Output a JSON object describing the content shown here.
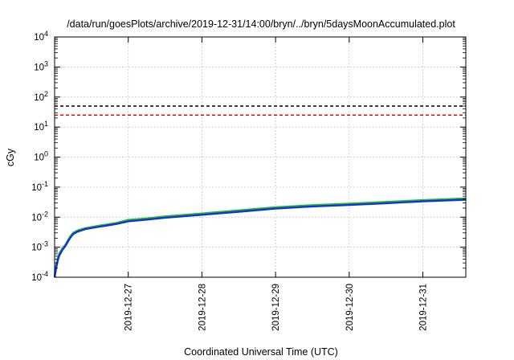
{
  "chart_data": {
    "type": "line",
    "title": "/data/run/goesPlots/archive/2019-12-31/14:00/bryn/../bryn/5daysMoonAccumulated.plot",
    "xlabel": "Coordinated Universal Time (UTC)",
    "ylabel": "cGy",
    "y_scale": "log",
    "ylim": [
      0.0001,
      10000
    ],
    "xlim": [
      "2019-12-26T00:00",
      "2019-12-31T14:00"
    ],
    "grid": true,
    "x_ticks": [
      "2019-12-27",
      "2019-12-28",
      "2019-12-29",
      "2019-12-30",
      "2019-12-31"
    ],
    "y_ticks": [
      {
        "base": "10",
        "exp": "-4",
        "value": 0.0001
      },
      {
        "base": "10",
        "exp": "-3",
        "value": 0.001
      },
      {
        "base": "10",
        "exp": "-2",
        "value": 0.01
      },
      {
        "base": "10",
        "exp": "-1",
        "value": 0.1
      },
      {
        "base": "10",
        "exp": "0",
        "value": 1
      },
      {
        "base": "10",
        "exp": "1",
        "value": 10
      },
      {
        "base": "10",
        "exp": "2",
        "value": 100
      },
      {
        "base": "10",
        "exp": "3",
        "value": 1000
      },
      {
        "base": "10",
        "exp": "4",
        "value": 10000
      }
    ],
    "reference_lines": [
      {
        "value": 50,
        "color": "#000000",
        "style": "dashed"
      },
      {
        "value": 25,
        "color": "#ff0000",
        "style": "dashed"
      }
    ],
    "series": [
      {
        "color": "#22bb22",
        "x": [
          "2019-12-26T00:00",
          "2019-12-26T00:30",
          "2019-12-26T01:00",
          "2019-12-26T01:30",
          "2019-12-26T02:30",
          "2019-12-26T03:30",
          "2019-12-26T05:00",
          "2019-12-26T06:00",
          "2019-12-26T07:30",
          "2019-12-26T10:00",
          "2019-12-26T14:00",
          "2019-12-26T20:00",
          "2019-12-27T00:00",
          "2019-12-27T06:00",
          "2019-12-27T12:00",
          "2019-12-28T00:00",
          "2019-12-28T12:00",
          "2019-12-29T00:00",
          "2019-12-29T12:00",
          "2019-12-30T00:00",
          "2019-12-30T12:00",
          "2019-12-31T00:00",
          "2019-12-31T14:00"
        ],
        "y": [
          0.00012,
          0.00025,
          0.0004,
          0.0006,
          0.0009,
          0.0012,
          0.0022,
          0.003,
          0.0036,
          0.0043,
          0.0051,
          0.0064,
          0.0081,
          0.0091,
          0.0106,
          0.0132,
          0.0168,
          0.0213,
          0.0251,
          0.0281,
          0.0321,
          0.0369,
          0.0421
        ]
      },
      {
        "color": "#1133dd",
        "x": [
          "2019-12-26T00:00",
          "2019-12-26T00:30",
          "2019-12-26T01:00",
          "2019-12-26T01:30",
          "2019-12-26T02:30",
          "2019-12-26T03:30",
          "2019-12-26T05:00",
          "2019-12-26T06:00",
          "2019-12-26T07:30",
          "2019-12-26T10:00",
          "2019-12-26T14:00",
          "2019-12-26T20:00",
          "2019-12-27T00:00",
          "2019-12-27T06:00",
          "2019-12-27T12:00",
          "2019-12-28T00:00",
          "2019-12-28T12:00",
          "2019-12-29T00:00",
          "2019-12-29T12:00",
          "2019-12-30T00:00",
          "2019-12-30T12:00",
          "2019-12-31T00:00",
          "2019-12-31T14:00"
        ],
        "y": [
          0.0001,
          0.0002,
          0.00035,
          0.00052,
          0.0008,
          0.0011,
          0.002,
          0.0027,
          0.0033,
          0.004,
          0.0047,
          0.0059,
          0.0073,
          0.0083,
          0.0096,
          0.012,
          0.0152,
          0.0193,
          0.0227,
          0.0255,
          0.0291,
          0.0335,
          0.0382
        ]
      }
    ]
  }
}
